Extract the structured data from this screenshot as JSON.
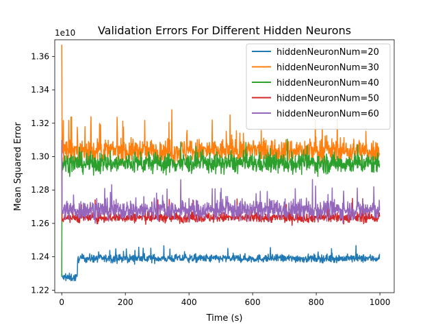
{
  "chart_data": {
    "type": "line",
    "title": "Validation Errors For Different Hidden Neurons",
    "xlabel": "Time (s)",
    "ylabel": "Mean Squared Error",
    "y_offset_label": "1e10",
    "xlim": [
      -22,
      1045
    ],
    "ylim": [
      1.2185,
      1.37
    ],
    "x_ticks": [
      0,
      200,
      400,
      600,
      800,
      1000
    ],
    "y_ticks": [
      1.22,
      1.24,
      1.26,
      1.28,
      1.3,
      1.32,
      1.34,
      1.36
    ],
    "y_tick_labels": [
      "1.22",
      "1.24",
      "1.26",
      "1.28",
      "1.30",
      "1.32",
      "1.34",
      "1.36"
    ],
    "grid": false,
    "legend_position": "top-right",
    "n_points": 1000,
    "series": [
      {
        "name": "hiddenNeuronNum=20",
        "color": "#1f77b4",
        "start": 1.23,
        "early_mean": 1.2275,
        "early_end": 50,
        "mean": 1.239,
        "noise": 0.0012,
        "spike_prob": 0.035,
        "spike_amp": 0.008
      },
      {
        "name": "hiddenNeuronNum=30",
        "color": "#ff7f0e",
        "start": 1.367,
        "early_mean": 1.304,
        "early_end": 5,
        "mean": 1.3035,
        "noise": 0.0035,
        "spike_prob": 0.05,
        "spike_amp": 0.02
      },
      {
        "name": "hiddenNeuronNum=40",
        "color": "#2ca02c",
        "start": 1.228,
        "early_mean": 1.296,
        "early_end": 5,
        "mean": 1.296,
        "noise": 0.003,
        "spike_prob": 0.03,
        "spike_amp": 0.01
      },
      {
        "name": "hiddenNeuronNum=50",
        "color": "#d62728",
        "start": 1.307,
        "early_mean": 1.2635,
        "early_end": 5,
        "mean": 1.2635,
        "noise": 0.0015,
        "spike_prob": 0.03,
        "spike_amp": 0.012
      },
      {
        "name": "hiddenNeuronNum=60",
        "color": "#9467bd",
        "start": 1.31,
        "early_mean": 1.268,
        "early_end": 5,
        "mean": 1.268,
        "noise": 0.003,
        "spike_prob": 0.05,
        "spike_amp": 0.014
      }
    ]
  }
}
